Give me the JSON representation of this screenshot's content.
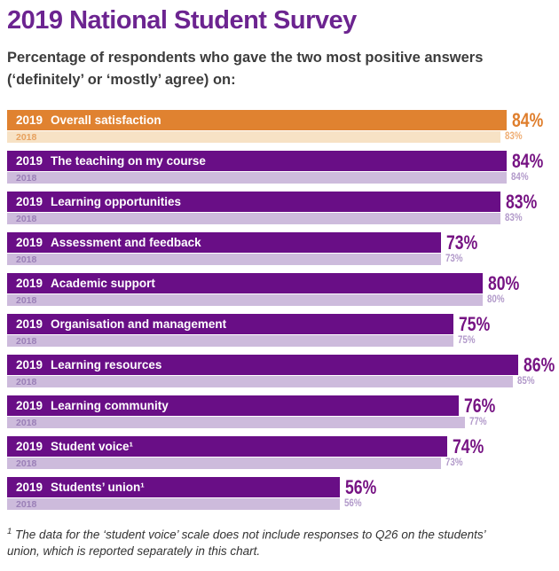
{
  "page": {
    "title": "2019 National Student Survey",
    "subtitle": "Percentage of respondents who gave the two most positive answers (‘definitely’ or ‘mostly’ agree) on:",
    "footnote_sup": "1",
    "footnote_text": " The data for the ‘student voice’ scale does not include responses to Q26 on the students’ union, which is reported separately in this chart."
  },
  "colors": {
    "title_purple": "#6C2490",
    "text_dark": "#3C3C3C",
    "bar_text": "#FFFFFF",
    "orange_2019": "#E08230",
    "orange_2018": "#F7E2C5",
    "orange_year_label": "#E7A15E",
    "orange_value_2019": "#DF7E2C",
    "orange_value_2018": "#EFAE74",
    "purple_2019": "#690E86",
    "purple_2018": "#CDBBDC",
    "purple_year_label": "#9A7FB7",
    "purple_value_2019": "#761383",
    "purple_value_2018": "#B29ACA"
  },
  "chart_data": {
    "type": "bar",
    "orientation": "horizontal",
    "unit": "%",
    "value_range": [
      0,
      100
    ],
    "series_names": [
      "2019",
      "2018"
    ],
    "categories": [
      "Overall satisfaction",
      "The teaching on my course",
      "Learning opportunities",
      "Assessment and feedback",
      "Academic support",
      "Organisation and management",
      "Learning resources",
      "Learning community",
      "Student voice¹",
      "Students’ union¹"
    ],
    "series": [
      {
        "name": "2019",
        "values": [
          84,
          84,
          83,
          73,
          80,
          75,
          86,
          76,
          74,
          56
        ]
      },
      {
        "name": "2018",
        "values": [
          83,
          84,
          83,
          73,
          80,
          75,
          85,
          77,
          73,
          56
        ]
      }
    ],
    "rows": [
      {
        "year_top": "2019",
        "year_bottom": "2018",
        "label": "Overall satisfaction",
        "value_2019": 84,
        "value_2018": 83,
        "theme": "orange"
      },
      {
        "year_top": "2019",
        "year_bottom": "2018",
        "label": "The teaching on my course",
        "value_2019": 84,
        "value_2018": 84,
        "theme": "purple"
      },
      {
        "year_top": "2019",
        "year_bottom": "2018",
        "label": "Learning opportunities",
        "value_2019": 83,
        "value_2018": 83,
        "theme": "purple"
      },
      {
        "year_top": "2019",
        "year_bottom": "2018",
        "label": "Assessment and feedback",
        "value_2019": 73,
        "value_2018": 73,
        "theme": "purple"
      },
      {
        "year_top": "2019",
        "year_bottom": "2018",
        "label": "Academic support",
        "value_2019": 80,
        "value_2018": 80,
        "theme": "purple"
      },
      {
        "year_top": "2019",
        "year_bottom": "2018",
        "label": "Organisation and management",
        "value_2019": 75,
        "value_2018": 75,
        "theme": "purple"
      },
      {
        "year_top": "2019",
        "year_bottom": "2018",
        "label": "Learning resources",
        "value_2019": 86,
        "value_2018": 85,
        "theme": "purple"
      },
      {
        "year_top": "2019",
        "year_bottom": "2018",
        "label": "Learning community",
        "value_2019": 76,
        "value_2018": 77,
        "theme": "purple"
      },
      {
        "year_top": "2019",
        "year_bottom": "2018",
        "label": "Student voice¹",
        "value_2019": 74,
        "value_2018": 73,
        "theme": "purple"
      },
      {
        "year_top": "2019",
        "year_bottom": "2018",
        "label": "Students’ union¹",
        "value_2019": 56,
        "value_2018": 56,
        "theme": "purple"
      }
    ]
  }
}
